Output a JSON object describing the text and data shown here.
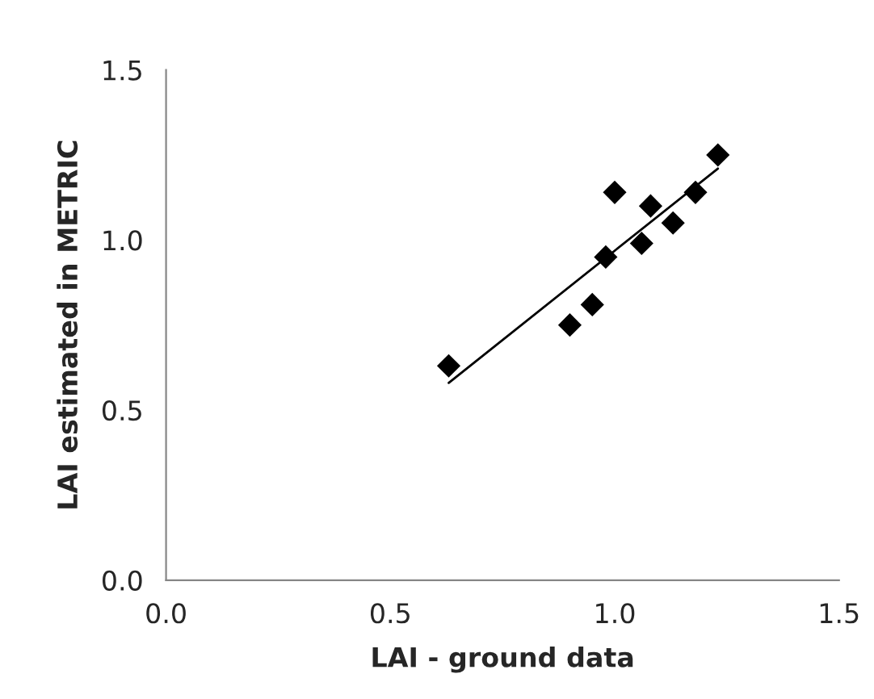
{
  "chart_data": {
    "type": "scatter",
    "xlabel": "LAI - ground data",
    "ylabel": "LAI estimated in METRIC",
    "xlim": [
      0,
      1.5
    ],
    "ylim": [
      0,
      1.5
    ],
    "xticks": [
      {
        "value": 0,
        "label": "0.0"
      },
      {
        "value": 0.5,
        "label": "0.5"
      },
      {
        "value": 1.0,
        "label": "1.0"
      },
      {
        "value": 1.5,
        "label": "1.5"
      }
    ],
    "yticks": [
      {
        "value": 0,
        "label": "0.0"
      },
      {
        "value": 0.5,
        "label": "0.5"
      },
      {
        "value": 1.0,
        "label": "1.0"
      },
      {
        "value": 1.5,
        "label": "1.5"
      }
    ],
    "grid": false,
    "legend": false,
    "series": [
      {
        "color": "#000000",
        "marker": "diamond",
        "x": [
          0.63,
          0.9,
          0.95,
          0.98,
          1.0,
          1.06,
          1.08,
          1.13,
          1.18,
          1.23
        ],
        "values": [
          0.63,
          0.75,
          0.81,
          0.95,
          1.14,
          0.99,
          1.1,
          1.05,
          1.14,
          1.25
        ]
      },
      {
        "type": "line",
        "color": "#000000",
        "marker": "none",
        "line_style": "solid",
        "x": [
          0.63,
          1.23
        ],
        "values": [
          0.58,
          1.21
        ]
      }
    ]
  }
}
